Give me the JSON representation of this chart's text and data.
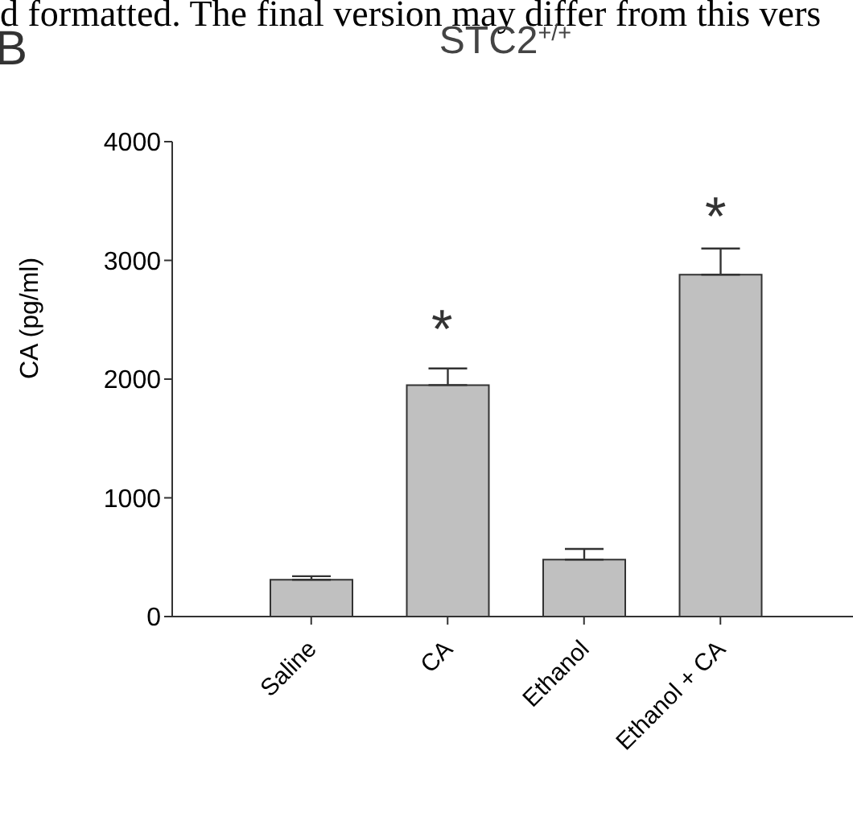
{
  "chart_data": {
    "type": "bar",
    "title": "STC2$^{+/+}$",
    "ylabel": "CA (pg/ml)",
    "categories": [
      "Saline",
      "CA",
      "Ethanol",
      "Ethanol + CA"
    ],
    "values": [
      310,
      1950,
      480,
      2880
    ],
    "color": "#c0c0c0",
    "errors": [
      [
        310,
        340
      ],
      [
        1950,
        2090
      ],
      [
        480,
        570
      ],
      [
        2880,
        3100
      ]
    ],
    "ylim": [
      0,
      4000
    ],
    "yticks": [
      0,
      1000,
      2000,
      3000,
      4000
    ],
    "grid": false,
    "annotations": [
      "d formatted. The final version may differ from this vers",
      "B",
      "*",
      "*"
    ]
  }
}
